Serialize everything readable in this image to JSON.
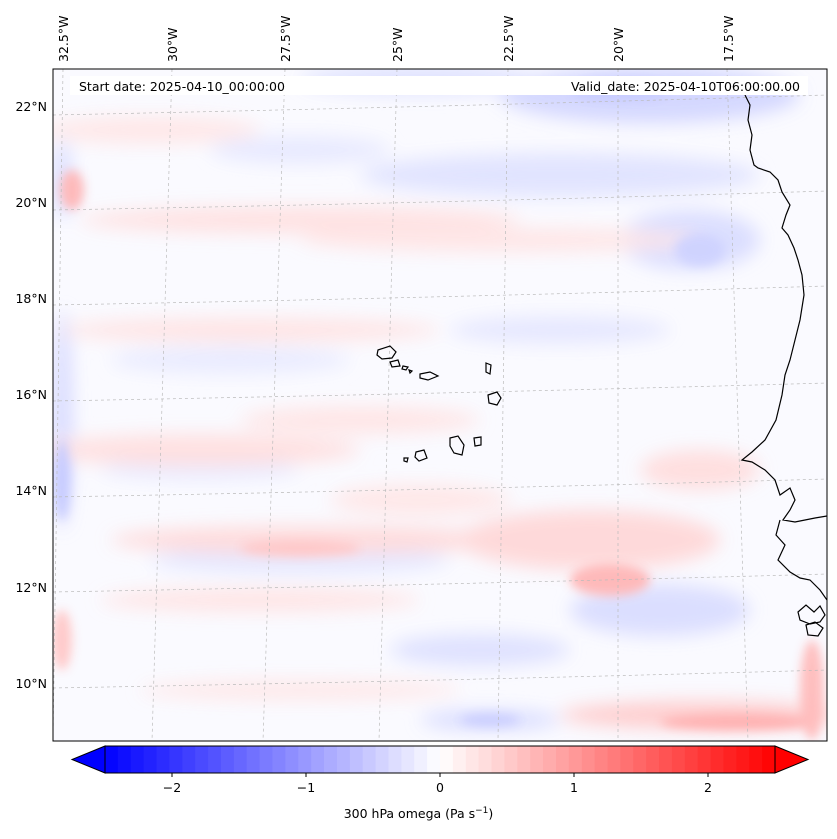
{
  "header": {
    "start_date": "Start date: 2025-04-10_00:00:00",
    "valid_date": "Valid_date: 2025-04-10T06:00:00.00"
  },
  "map": {
    "extent_lon": [
      -33.0,
      -15.5
    ],
    "extent_lat": [
      8.8,
      22.8
    ],
    "projection": "lambert-conformal",
    "gridlines": "dashed-light-gray",
    "features": [
      "coastlines",
      "cape-verde-islands",
      "west-africa-coast"
    ]
  },
  "axes": {
    "lon_labels": [
      "32.5°W",
      "30°W",
      "27.5°W",
      "25°W",
      "22.5°W",
      "20°W",
      "17.5°W"
    ],
    "lat_labels": [
      "22°N",
      "20°N",
      "18°N",
      "16°N",
      "14°N",
      "12°N",
      "10°N"
    ]
  },
  "field": {
    "variable": "300 hPa omega",
    "units": "Pa s",
    "units_exponent": "−1",
    "colormap": "bwr",
    "range": [
      -2.6,
      2.6
    ]
  },
  "colorbar": {
    "ticks": [
      "−2",
      "−1",
      "0",
      "1",
      "2"
    ],
    "tick_values": [
      -2,
      -1,
      0,
      1,
      2
    ],
    "extend": "both",
    "label_main": "300 hPa omega (Pa s",
    "label_sup": "−1",
    "label_close": ")"
  }
}
